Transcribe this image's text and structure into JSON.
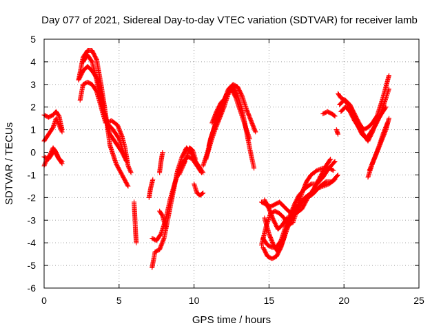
{
  "chart_data": {
    "type": "scatter",
    "title": "Day 077 of 2021, Sidereal Day-to-day VTEC variation (SDTVAR) for receiver lamb",
    "xlabel": "GPS time / hours",
    "ylabel": "SDTVAR / TECUs",
    "xlim": [
      0,
      25
    ],
    "ylim": [
      -6,
      5
    ],
    "x_ticks": [
      "0",
      "5",
      "10",
      "15",
      "20",
      "25"
    ],
    "y_ticks": [
      "-6",
      "-5",
      "-4",
      "-3",
      "-2",
      "-1",
      "0",
      "1",
      "2",
      "3",
      "4",
      "5"
    ],
    "grid": true,
    "marker": "+",
    "color": "#ff0000",
    "segments": [
      [
        [
          0.0,
          1.65
        ],
        [
          0.3,
          1.55
        ],
        [
          0.6,
          1.65
        ],
        [
          0.8,
          1.8
        ],
        [
          1.0,
          1.6
        ],
        [
          1.2,
          1.0
        ]
      ],
      [
        [
          0.0,
          0.5
        ],
        [
          0.3,
          0.8
        ],
        [
          0.6,
          1.1
        ],
        [
          0.8,
          1.5
        ],
        [
          1.0,
          1.2
        ],
        [
          1.2,
          0.9
        ]
      ],
      [
        [
          0.0,
          -0.6
        ],
        [
          0.2,
          -0.3
        ],
        [
          0.4,
          -0.1
        ],
        [
          0.6,
          0.2
        ],
        [
          0.8,
          0.0
        ],
        [
          1.0,
          -0.3
        ],
        [
          1.2,
          -0.4
        ]
      ],
      [
        [
          0.0,
          -0.2
        ],
        [
          0.3,
          -0.3
        ],
        [
          0.5,
          -0.1
        ],
        [
          0.7,
          0.1
        ],
        [
          0.9,
          -0.2
        ],
        [
          1.2,
          -0.5
        ]
      ],
      [
        [
          2.3,
          3.2
        ],
        [
          2.6,
          4.2
        ],
        [
          2.9,
          4.5
        ],
        [
          3.2,
          4.5
        ],
        [
          3.5,
          4.1
        ],
        [
          3.8,
          3.0
        ],
        [
          4.1,
          1.7
        ],
        [
          4.4,
          0.3
        ],
        [
          4.8,
          -0.5
        ],
        [
          5.2,
          -1.0
        ],
        [
          5.6,
          -1.5
        ]
      ],
      [
        [
          2.3,
          3.2
        ],
        [
          2.6,
          3.6
        ],
        [
          2.9,
          3.8
        ],
        [
          3.2,
          3.6
        ],
        [
          3.5,
          3.3
        ],
        [
          3.8,
          2.6
        ],
        [
          4.1,
          1.5
        ],
        [
          4.4,
          0.8
        ],
        [
          4.8,
          0.4
        ],
        [
          5.2,
          0.0
        ],
        [
          5.5,
          -0.4
        ]
      ],
      [
        [
          2.4,
          2.3
        ],
        [
          2.6,
          3.0
        ],
        [
          2.9,
          3.1
        ],
        [
          3.2,
          3.0
        ],
        [
          3.5,
          2.7
        ],
        [
          3.8,
          2.0
        ],
        [
          4.1,
          1.3
        ],
        [
          4.5,
          1.4
        ],
        [
          4.9,
          1.2
        ],
        [
          5.2,
          0.7
        ],
        [
          5.4,
          0.2
        ],
        [
          5.6,
          -0.6
        ],
        [
          5.8,
          -0.9
        ]
      ],
      [
        [
          2.6,
          4.0
        ],
        [
          2.9,
          4.3
        ],
        [
          3.2,
          4.0
        ],
        [
          3.5,
          3.2
        ],
        [
          3.8,
          2.2
        ],
        [
          4.2,
          1.3
        ],
        [
          4.6,
          1.0
        ],
        [
          5.0,
          0.6
        ],
        [
          5.4,
          -0.2
        ]
      ],
      [
        [
          6.0,
          -2.2
        ],
        [
          6.05,
          -2.8
        ],
        [
          6.1,
          -3.5
        ],
        [
          6.15,
          -4.0
        ]
      ],
      [
        [
          7.2,
          -5.1
        ],
        [
          7.4,
          -4.4
        ],
        [
          7.7,
          -4.3
        ],
        [
          8.0,
          -3.8
        ],
        [
          8.3,
          -2.8
        ],
        [
          8.6,
          -1.8
        ],
        [
          8.9,
          -0.8
        ],
        [
          9.2,
          -0.2
        ],
        [
          9.5,
          0.2
        ],
        [
          9.8,
          0.0
        ],
        [
          10.1,
          -0.4
        ],
        [
          10.4,
          -0.7
        ],
        [
          10.6,
          -0.9
        ]
      ],
      [
        [
          7.2,
          -3.8
        ],
        [
          7.5,
          -3.9
        ],
        [
          7.8,
          -3.6
        ],
        [
          8.1,
          -3.0
        ],
        [
          8.4,
          -2.1
        ],
        [
          8.7,
          -1.4
        ],
        [
          9.0,
          -0.8
        ],
        [
          9.3,
          -0.4
        ],
        [
          9.6,
          -0.2
        ],
        [
          9.9,
          -0.3
        ],
        [
          10.2,
          -0.6
        ],
        [
          10.5,
          -0.9
        ]
      ],
      [
        [
          7.0,
          -2.0
        ],
        [
          7.1,
          -1.6
        ],
        [
          7.25,
          -1.2
        ]
      ],
      [
        [
          7.7,
          -0.9
        ],
        [
          7.8,
          -0.4
        ],
        [
          7.9,
          0.0
        ]
      ],
      [
        [
          7.7,
          -2.6
        ],
        [
          7.9,
          -2.8
        ],
        [
          8.1,
          -3.3
        ]
      ],
      [
        [
          9.0,
          -1.0
        ],
        [
          9.2,
          -0.7
        ],
        [
          9.4,
          -0.4
        ]
      ],
      [
        [
          9.3,
          -0.5
        ],
        [
          9.5,
          -0.2
        ],
        [
          9.7,
          0.2
        ],
        [
          9.9,
          0.1
        ],
        [
          10.1,
          -0.3
        ]
      ],
      [
        [
          10.0,
          -1.4
        ],
        [
          10.2,
          -1.8
        ],
        [
          10.4,
          -1.9
        ],
        [
          10.6,
          -1.8
        ]
      ],
      [
        [
          10.6,
          -0.6
        ],
        [
          10.9,
          0.0
        ],
        [
          11.1,
          0.6
        ],
        [
          11.4,
          1.2
        ],
        [
          11.7,
          1.8
        ],
        [
          12.0,
          2.3
        ],
        [
          12.3,
          2.8
        ],
        [
          12.6,
          3.0
        ],
        [
          12.9,
          2.9
        ],
        [
          13.2,
          2.5
        ],
        [
          13.5,
          1.9
        ],
        [
          13.8,
          1.4
        ],
        [
          14.1,
          0.9
        ]
      ],
      [
        [
          10.8,
          -0.3
        ],
        [
          11.1,
          0.4
        ],
        [
          11.4,
          1.0
        ],
        [
          11.7,
          1.5
        ],
        [
          12.0,
          2.0
        ],
        [
          12.3,
          2.6
        ],
        [
          12.6,
          2.9
        ],
        [
          12.9,
          2.5
        ],
        [
          13.2,
          1.9
        ],
        [
          13.5,
          0.9
        ],
        [
          13.8,
          -0.1
        ],
        [
          14.0,
          -0.7
        ]
      ],
      [
        [
          11.0,
          0.3
        ],
        [
          11.3,
          1.0
        ],
        [
          11.6,
          1.6
        ],
        [
          11.9,
          2.1
        ],
        [
          12.2,
          2.6
        ],
        [
          12.5,
          2.8
        ],
        [
          12.8,
          2.4
        ],
        [
          13.1,
          1.8
        ],
        [
          13.4,
          1.2
        ],
        [
          13.7,
          0.6
        ]
      ],
      [
        [
          11.2,
          1.3
        ],
        [
          11.5,
          1.8
        ],
        [
          11.8,
          2.2
        ],
        [
          12.1,
          2.4
        ]
      ],
      [
        [
          14.5,
          -2.2
        ],
        [
          14.8,
          -2.3
        ],
        [
          15.1,
          -2.4
        ],
        [
          15.4,
          -2.3
        ],
        [
          15.7,
          -2.2
        ],
        [
          16.0,
          -2.4
        ],
        [
          16.3,
          -2.6
        ],
        [
          16.6,
          -2.7
        ],
        [
          16.9,
          -2.4
        ],
        [
          17.2,
          -1.8
        ],
        [
          17.5,
          -1.3
        ],
        [
          17.8,
          -1.0
        ],
        [
          18.2,
          -0.8
        ],
        [
          18.6,
          -0.7
        ],
        [
          19.0,
          -0.7
        ],
        [
          19.3,
          -0.8
        ]
      ],
      [
        [
          14.6,
          -4.2
        ],
        [
          14.9,
          -4.6
        ],
        [
          15.2,
          -4.7
        ],
        [
          15.5,
          -4.6
        ],
        [
          15.8,
          -4.2
        ],
        [
          16.1,
          -3.5
        ],
        [
          16.4,
          -2.9
        ],
        [
          16.7,
          -2.5
        ],
        [
          17.0,
          -2.3
        ],
        [
          17.4,
          -2.0
        ],
        [
          17.8,
          -1.8
        ],
        [
          18.2,
          -1.6
        ],
        [
          18.6,
          -1.5
        ],
        [
          19.0,
          -1.4
        ],
        [
          19.4,
          -1.2
        ]
      ],
      [
        [
          14.6,
          -3.8
        ],
        [
          14.9,
          -4.1
        ],
        [
          15.2,
          -4.2
        ],
        [
          15.5,
          -4.2
        ],
        [
          15.8,
          -3.9
        ],
        [
          16.1,
          -3.3
        ],
        [
          16.4,
          -2.8
        ],
        [
          16.7,
          -2.3
        ],
        [
          17.0,
          -1.9
        ],
        [
          17.4,
          -1.6
        ],
        [
          17.8,
          -1.4
        ],
        [
          18.2,
          -1.4
        ],
        [
          18.6,
          -1.1
        ],
        [
          19.0,
          -0.7
        ],
        [
          19.4,
          -0.4
        ]
      ],
      [
        [
          14.7,
          -2.9
        ],
        [
          15.0,
          -3.6
        ],
        [
          15.3,
          -4.1
        ],
        [
          15.6,
          -4.4
        ],
        [
          15.9,
          -4.0
        ],
        [
          16.2,
          -3.4
        ],
        [
          16.5,
          -2.9
        ],
        [
          16.8,
          -2.7
        ],
        [
          17.2,
          -2.5
        ],
        [
          17.6,
          -2.0
        ],
        [
          18.0,
          -1.6
        ],
        [
          18.4,
          -1.1
        ],
        [
          18.8,
          -0.6
        ],
        [
          19.1,
          -0.3
        ]
      ],
      [
        [
          14.5,
          -4.1
        ],
        [
          14.8,
          -3.3
        ],
        [
          15.1,
          -2.7
        ],
        [
          15.4,
          -2.6
        ],
        [
          15.7,
          -2.7
        ],
        [
          16.0,
          -2.9
        ],
        [
          16.3,
          -3.2
        ],
        [
          16.6,
          -3.1
        ],
        [
          16.9,
          -2.5
        ],
        [
          17.2,
          -2.2
        ],
        [
          17.6,
          -2.0
        ],
        [
          18.0,
          -1.8
        ],
        [
          18.4,
          -1.5
        ],
        [
          18.8,
          -1.3
        ],
        [
          19.2,
          -1.3
        ],
        [
          19.6,
          -1.0
        ]
      ],
      [
        [
          14.7,
          -2.1
        ],
        [
          15.0,
          -2.5
        ],
        [
          15.3,
          -3.0
        ],
        [
          15.6,
          -3.4
        ],
        [
          15.9,
          -3.2
        ],
        [
          16.2,
          -2.9
        ]
      ],
      [
        [
          18.6,
          1.7
        ],
        [
          18.9,
          1.8
        ],
        [
          19.2,
          1.7
        ],
        [
          19.4,
          1.6
        ]
      ],
      [
        [
          19.5,
          1.0
        ],
        [
          19.6,
          0.8
        ]
      ],
      [
        [
          19.6,
          2.6
        ],
        [
          19.8,
          2.4
        ],
        [
          20.1,
          2.3
        ],
        [
          20.4,
          2.1
        ],
        [
          20.7,
          1.7
        ],
        [
          21.0,
          1.3
        ],
        [
          21.3,
          1.0
        ],
        [
          21.6,
          1.1
        ],
        [
          21.9,
          1.3
        ],
        [
          22.2,
          1.6
        ],
        [
          22.5,
          2.2
        ],
        [
          22.8,
          2.9
        ],
        [
          23.0,
          3.4
        ]
      ],
      [
        [
          19.7,
          2.1
        ],
        [
          20.0,
          2.3
        ],
        [
          20.3,
          2.1
        ],
        [
          20.6,
          1.6
        ],
        [
          20.9,
          1.2
        ],
        [
          21.2,
          0.8
        ],
        [
          21.5,
          0.6
        ],
        [
          21.8,
          0.9
        ],
        [
          22.1,
          1.2
        ],
        [
          22.4,
          1.6
        ],
        [
          22.7,
          2.2
        ],
        [
          23.0,
          2.8
        ]
      ],
      [
        [
          19.8,
          1.8
        ],
        [
          20.1,
          2.0
        ],
        [
          20.4,
          1.8
        ],
        [
          20.7,
          1.4
        ],
        [
          21.0,
          1.1
        ],
        [
          21.3,
          0.8
        ],
        [
          21.6,
          0.5
        ],
        [
          21.9,
          0.9
        ],
        [
          22.2,
          1.4
        ],
        [
          22.5,
          1.7
        ],
        [
          22.8,
          2.0
        ]
      ],
      [
        [
          21.6,
          -1.1
        ],
        [
          21.9,
          -0.5
        ],
        [
          22.2,
          0.0
        ],
        [
          22.5,
          0.5
        ],
        [
          22.8,
          1.0
        ],
        [
          23.0,
          1.5
        ]
      ],
      [
        [
          21.7,
          -0.8
        ],
        [
          22.0,
          -0.3
        ],
        [
          22.3,
          0.2
        ],
        [
          22.6,
          0.8
        ],
        [
          22.9,
          1.3
        ]
      ]
    ]
  }
}
